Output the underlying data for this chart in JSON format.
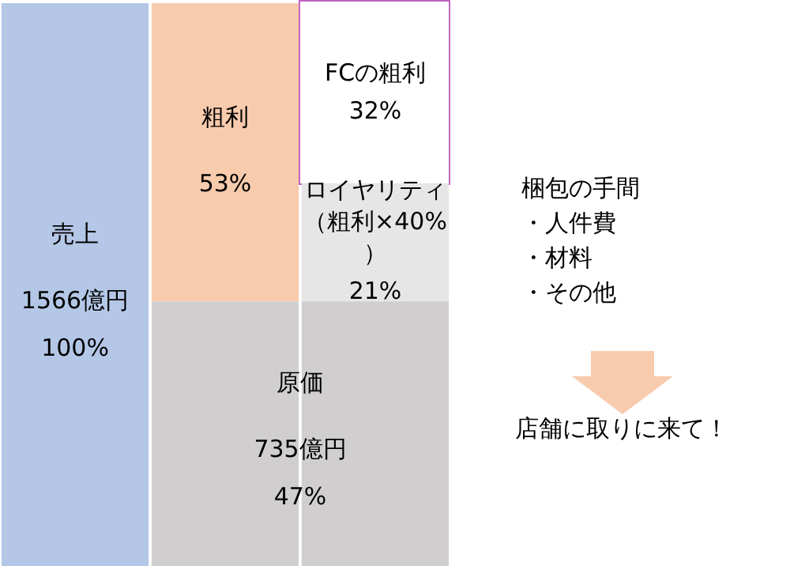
{
  "chart_data": {
    "type": "bar",
    "stacked": true,
    "categories": [
      null,
      null,
      null
    ],
    "ylim": [
      0,
      100
    ],
    "series": [
      {
        "name": "売上",
        "color": "#b4c7e7",
        "values": [
          100,
          null,
          null
        ],
        "value_labels": [
          "1566億円\n100%",
          null,
          null
        ]
      },
      {
        "name": "原価",
        "color": "#d0cece",
        "values": [
          null,
          47,
          47
        ],
        "value_labels": [
          null,
          "735億円\n47%",
          null
        ]
      },
      {
        "name": "粗利",
        "color": "#f8cbad",
        "values": [
          null,
          53,
          null
        ],
        "value_labels": [
          null,
          "53%",
          null
        ]
      },
      {
        "name": "ロイヤリティ（粗利×40%）",
        "color": "#e7e6e6",
        "values": [
          null,
          null,
          21
        ],
        "value_labels": [
          null,
          null,
          "21%"
        ]
      },
      {
        "name": "FCの粗利",
        "color": "#ffffff",
        "values": [
          null,
          null,
          32
        ],
        "value_labels": [
          null,
          null,
          "32%"
        ]
      }
    ],
    "annotations": [
      "梱包の手間・人件費・材料・その他",
      "店舗に取りに来て！"
    ],
    "legend": false
  }
}
